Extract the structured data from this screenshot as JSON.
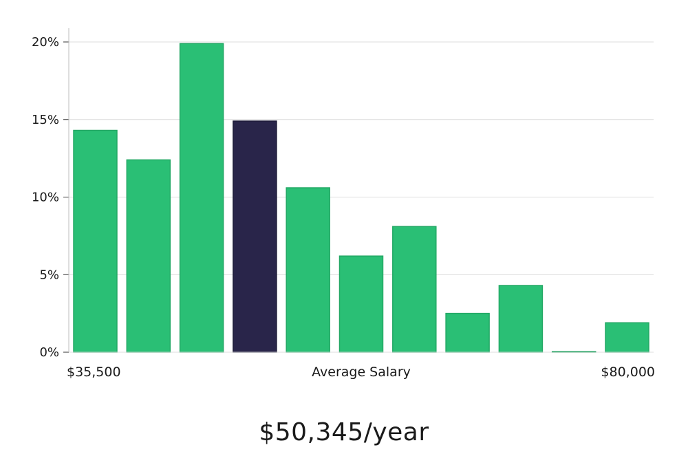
{
  "chart_data": {
    "type": "bar",
    "title": "",
    "xlabel": "Average Salary",
    "ylabel": "",
    "x_range_labels": {
      "min": "$35,500",
      "max": "$80,000"
    },
    "ylim": [
      0,
      21
    ],
    "yticks": [
      0,
      5,
      10,
      15,
      20
    ],
    "ytick_labels": [
      "0%",
      "5%",
      "10%",
      "15%",
      "20%"
    ],
    "grid": true,
    "values": [
      14.3,
      12.4,
      19.9,
      14.9,
      10.6,
      6.2,
      8.1,
      2.5,
      4.3,
      0.05,
      1.9
    ],
    "highlight_index": 3,
    "colors": {
      "bar": "#2abf75",
      "bar_edge": "#23a865",
      "highlight": "#29254a",
      "grid": "#dcdcdc",
      "axis": "#bdbdbd"
    }
  },
  "summary": {
    "salary_text": "$50,345/year"
  }
}
